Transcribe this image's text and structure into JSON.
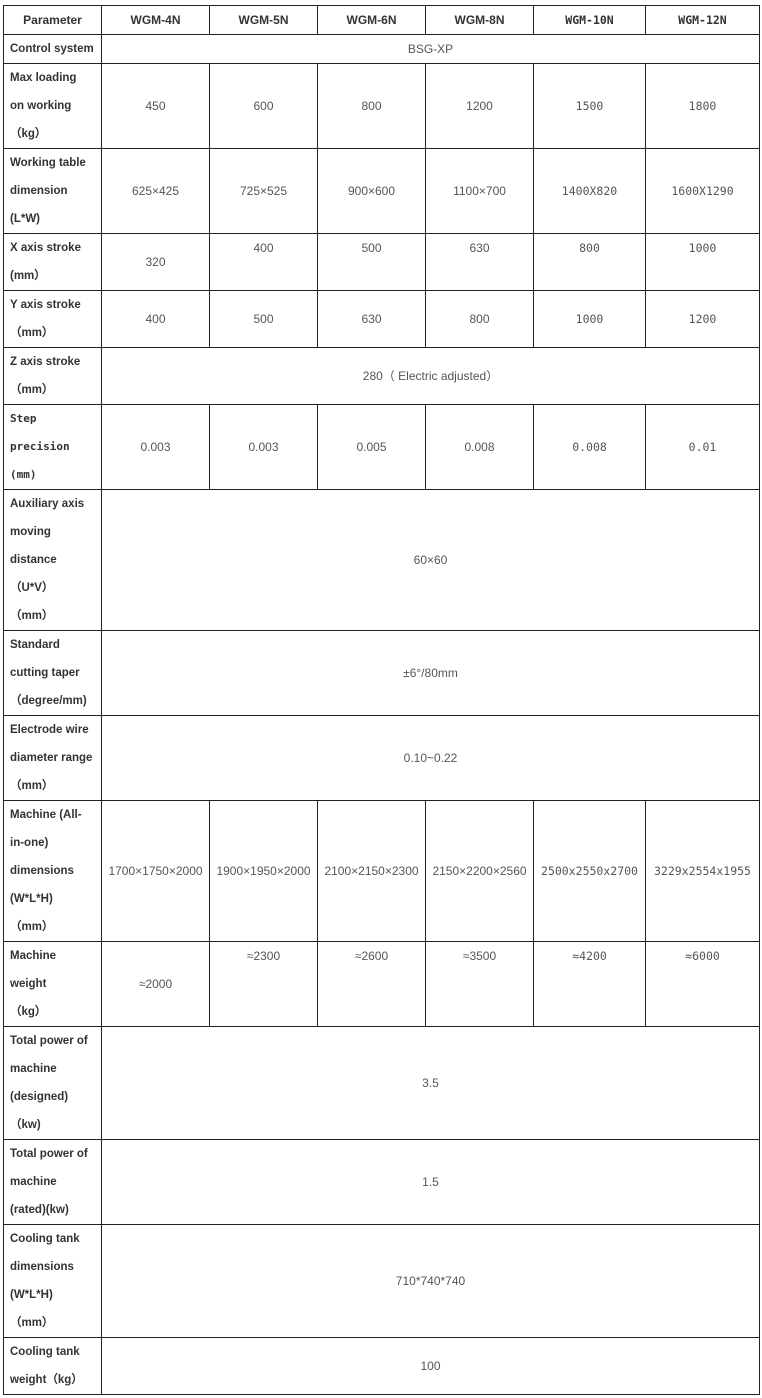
{
  "header": [
    "Parameter",
    "WGM-4N",
    "WGM-5N",
    "WGM-6N",
    "WGM-8N",
    "WGM-10N",
    "WGM-12N"
  ],
  "rows": [
    {
      "label": "Control system",
      "span": "BSG-XP"
    },
    {
      "label": "Max loading\non working\n（kg）",
      "values": [
        "450",
        "600",
        "800",
        "1200",
        "1500",
        "1800"
      ]
    },
    {
      "label": "Working table\ndimension\n(L*W)",
      "values": [
        "625×425",
        "725×525",
        "900×600",
        "1100×700",
        "1400X820",
        "1600X1290"
      ]
    },
    {
      "label": "X axis stroke\n(mm）",
      "values": [
        "320",
        "400",
        "500",
        "630",
        "800",
        "1000"
      ],
      "top_from": 1
    },
    {
      "label": "Y axis stroke\n（mm）",
      "values": [
        "400",
        "500",
        "630",
        "800",
        "1000",
        "1200"
      ]
    },
    {
      "label": "Z axis stroke\n（mm）",
      "span": "280（ Electric adjusted）"
    },
    {
      "label": "Step\nprecision\n(mm)",
      "values": [
        "0.003",
        "0.003",
        "0.005",
        "0.008",
        "0.008",
        "0.01"
      ],
      "mono_label": true
    },
    {
      "label": "Auxiliary axis\nmoving\ndistance\n（U*V）\n（mm）",
      "span": "60×60"
    },
    {
      "label": "Standard\ncutting taper\n（degree/mm)",
      "span": "±6°/80mm"
    },
    {
      "label": "Electrode wire\ndiameter range\n（mm）",
      "span": "0.10~0.22"
    },
    {
      "label": "Machine (All-\nin-one)\ndimensions\n(W*L*H)\n（mm）",
      "values": [
        "1700×1750×2000",
        "1900×1950×2000",
        "2100×2150×2300",
        "2150×2200×2560",
        "2500x2550x2700",
        "3229x2554x1955"
      ]
    },
    {
      "label": "Machine\nweight\n（kg）",
      "values": [
        "≈2000",
        "≈2300",
        "≈2600",
        "≈3500",
        "≈4200",
        "≈6000"
      ],
      "top_from": 1
    },
    {
      "label": "Total power of\nmachine\n(designed)\n（kw)",
      "span": "3.5"
    },
    {
      "label": "Total power of\nmachine\n(rated)(kw)",
      "span": "1.5"
    },
    {
      "label": "Cooling tank\ndimensions\n(W*L*H)\n（mm）",
      "span": "710*740*740"
    },
    {
      "label": "Cooling tank\nweight（kg）",
      "span": "100"
    }
  ]
}
